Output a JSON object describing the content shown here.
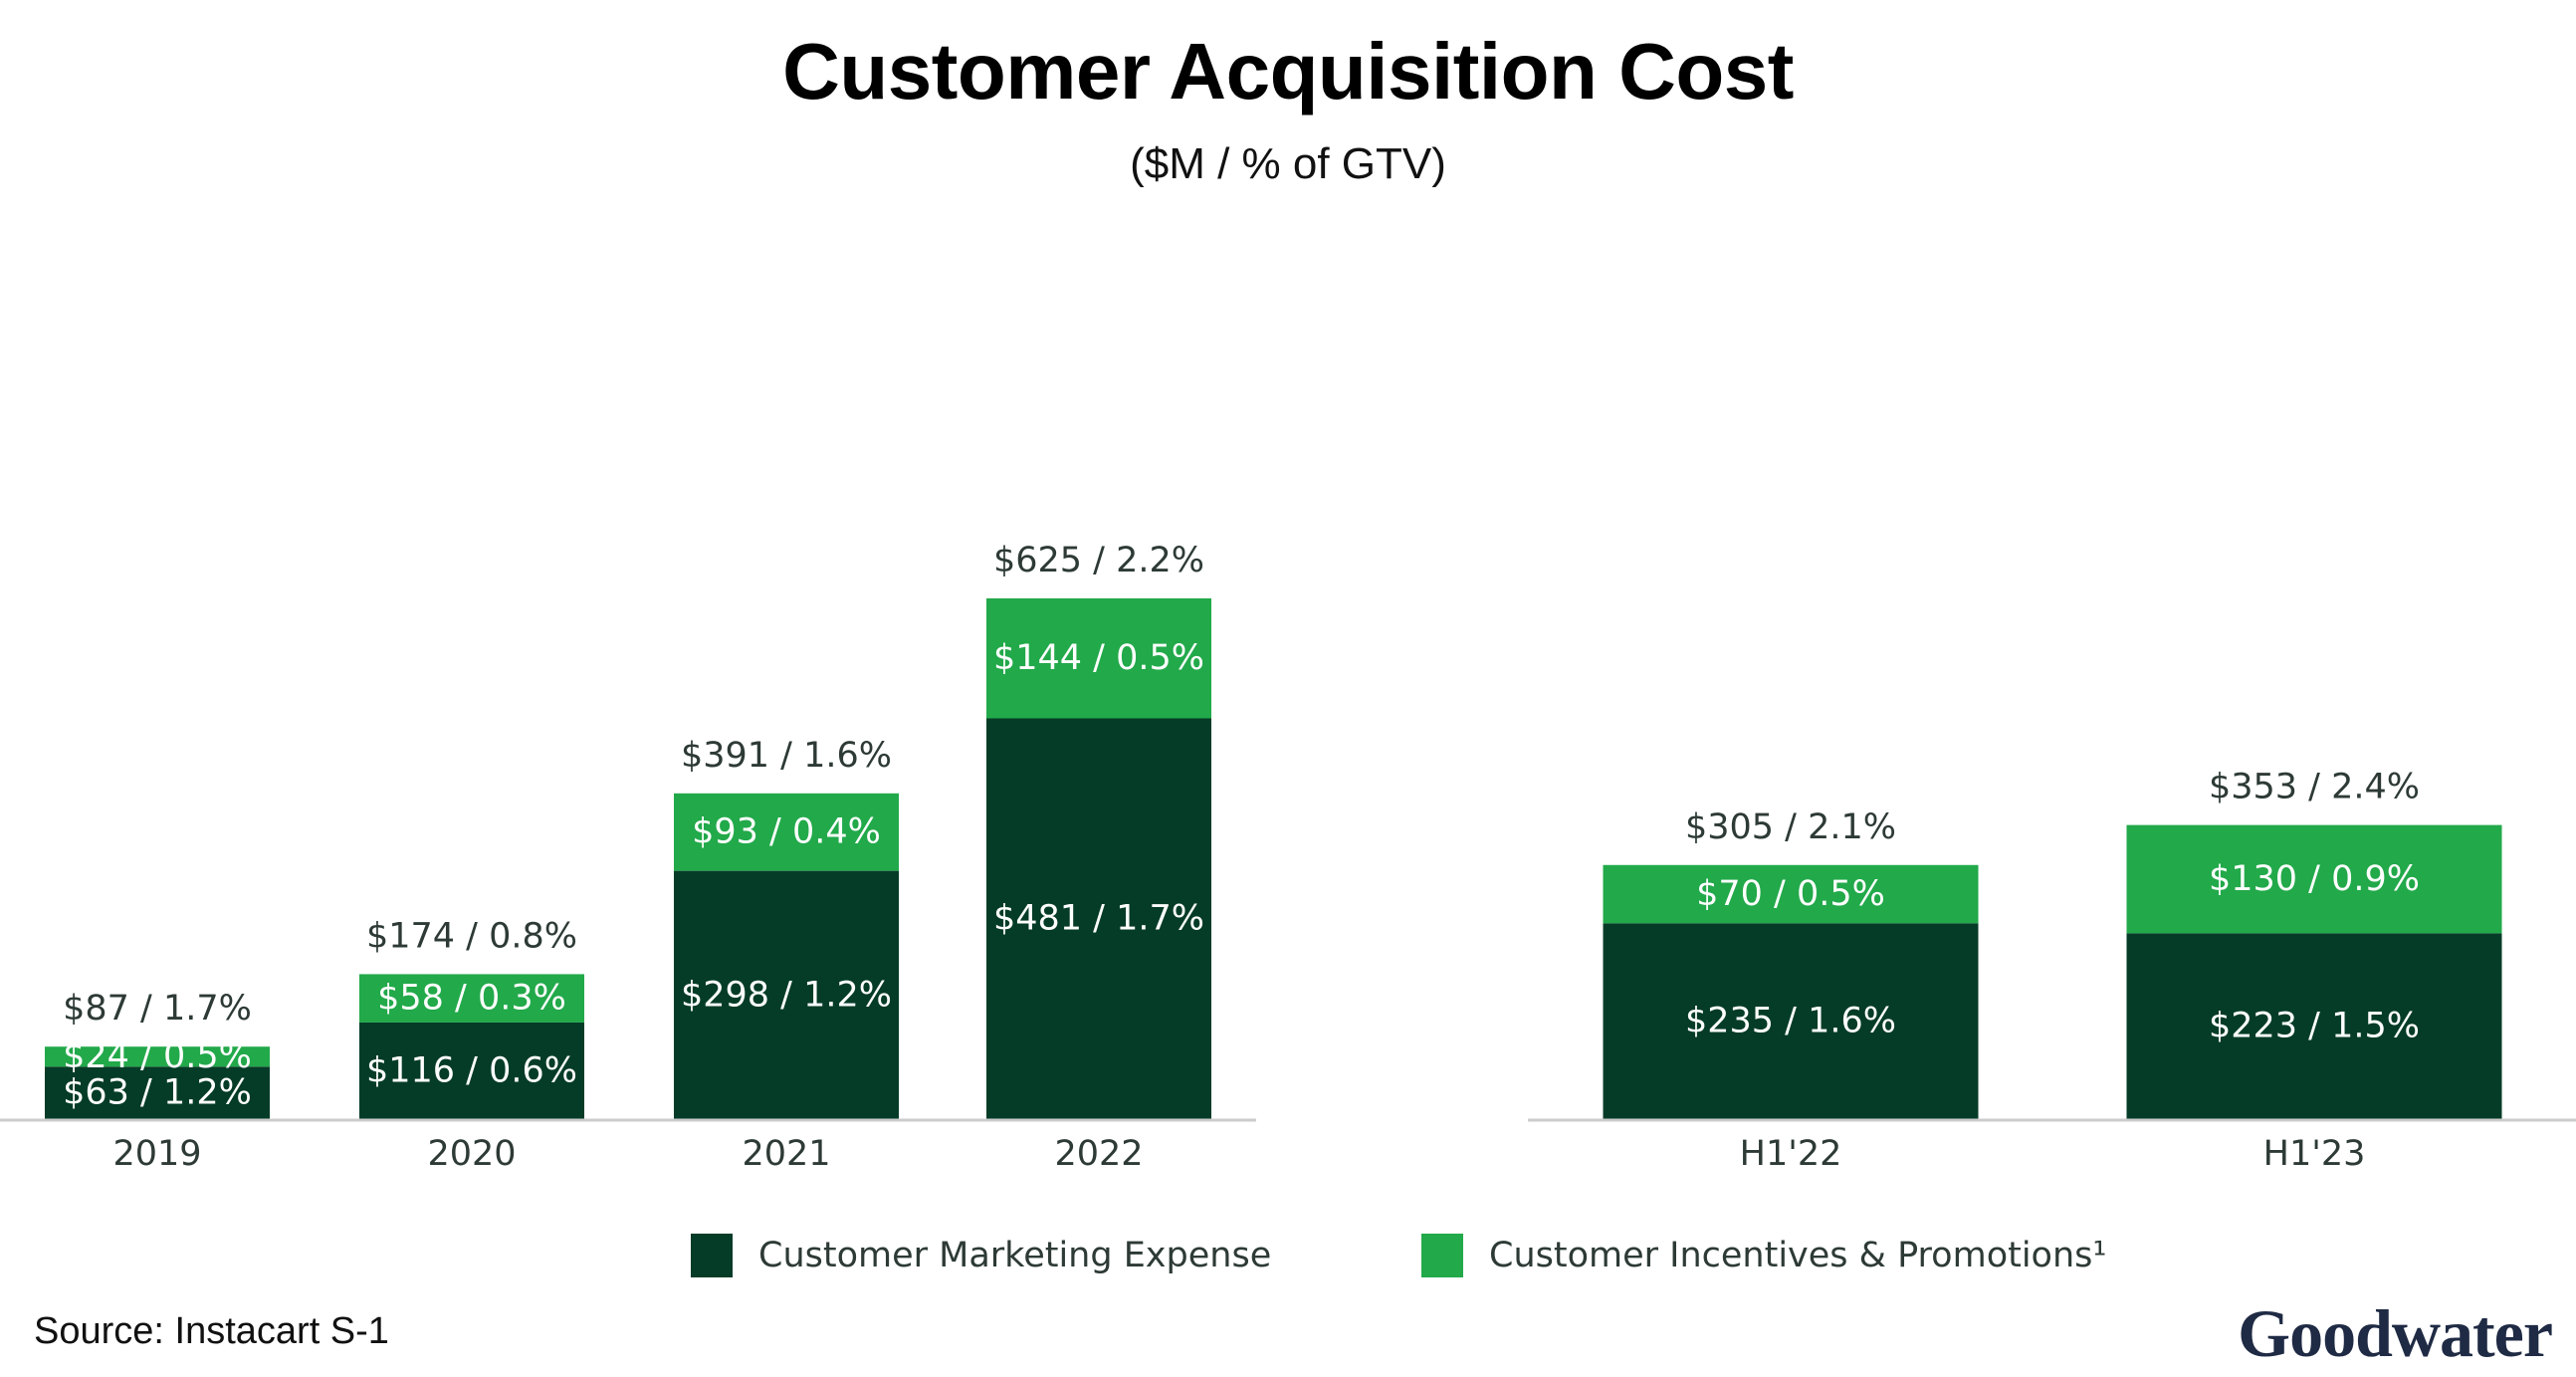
{
  "title": "Customer Acquisition Cost",
  "subtitle": "($M / % of GTV)",
  "source": "Source: Instacart S-1",
  "logo": "Goodwater",
  "colors": {
    "marketing": "#053c27",
    "incentives": "#22a94a",
    "axis": "#cccccc",
    "label_dark": "#2d3a36",
    "label_light": "#ffffff"
  },
  "legend": [
    {
      "name": "Customer Marketing Expense",
      "color": "#053c27"
    },
    {
      "name": "Customer Incentives & Promotions¹",
      "color": "#22a94a"
    }
  ],
  "chart_data": [
    {
      "type": "bar",
      "stacked": true,
      "categories": [
        "2019",
        "2020",
        "2021",
        "2022"
      ],
      "series": [
        {
          "name": "Customer Marketing Expense",
          "values": [
            63,
            116,
            298,
            481
          ],
          "labels": [
            "$63 / 1.2%",
            "$116 / 0.6%",
            "$298 / 1.2%",
            "$481 / 1.7%"
          ]
        },
        {
          "name": "Customer Incentives & Promotions¹",
          "values": [
            24,
            58,
            93,
            144
          ],
          "labels": [
            "$24 / 0.5%",
            "$58 / 0.3%",
            "$93 / 0.4%",
            "$144 / 0.5%"
          ]
        }
      ],
      "totals": [
        87,
        174,
        391,
        625
      ],
      "total_labels": [
        "$87 / 1.7%",
        "$174 / 0.8%",
        "$391 / 1.6%",
        "$625 / 2.2%"
      ],
      "ylim": [
        0,
        625
      ]
    },
    {
      "type": "bar",
      "stacked": true,
      "categories": [
        "H1'22",
        "H1'23"
      ],
      "series": [
        {
          "name": "Customer Marketing Expense",
          "values": [
            235,
            223
          ],
          "labels": [
            "$235 / 1.6%",
            "$223 / 1.5%"
          ]
        },
        {
          "name": "Customer Incentives & Promotions¹",
          "values": [
            70,
            130
          ],
          "labels": [
            "$70 / 0.5%",
            "$130 / 0.9%"
          ]
        }
      ],
      "totals": [
        305,
        353
      ],
      "total_labels": [
        "$305 / 2.1%",
        "$353 / 2.4%"
      ],
      "ylim": [
        0,
        353
      ]
    }
  ]
}
